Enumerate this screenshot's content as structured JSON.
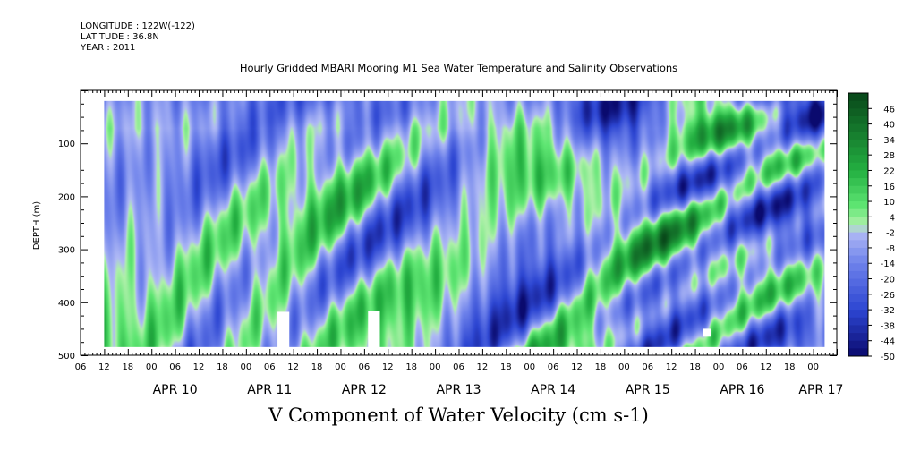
{
  "header": {
    "longitude": "LONGITUDE : 122W(-122)",
    "latitude": "LATITUDE : 36.8N",
    "year": "YEAR : 2011",
    "title": "Hourly Gridded MBARI Mooring M1 Sea Water Temperature and Salinity Observations"
  },
  "footer": {
    "variable_label": "V Component of Water Velocity (cm s-1)"
  },
  "chart_data": {
    "type": "heatmap",
    "title": "Hourly Gridded MBARI Mooring M1 Sea Water Temperature and Salinity Observations",
    "ylabel": "DEPTH (m)",
    "xlabel": "",
    "variable": "V Component of Water Velocity (cm s-1)",
    "ylim": [
      500,
      0
    ],
    "y_ticks": [
      100,
      200,
      300,
      400,
      500
    ],
    "depth_range": [
      20,
      485
    ],
    "x_range": [
      "2011-04-09T06:00",
      "2011-04-17T06:00"
    ],
    "data_range": [
      "2011-04-09T12:00",
      "2011-04-17T03:00"
    ],
    "x_hour_ticks": [
      "06",
      "12",
      "18",
      "00",
      "06",
      "12",
      "18",
      "00",
      "06",
      "12",
      "18",
      "00",
      "06",
      "12",
      "18",
      "00",
      "06",
      "12",
      "18",
      "00",
      "06",
      "12",
      "18",
      "00",
      "06",
      "12",
      "18",
      "00",
      "06",
      "12",
      "18",
      "00"
    ],
    "x_date_labels": [
      {
        "label": "APR 10",
        "hour": 24
      },
      {
        "label": "APR 11",
        "hour": 48
      },
      {
        "label": "APR 12",
        "hour": 72
      },
      {
        "label": "APR 13",
        "hour": 96
      },
      {
        "label": "APR 14",
        "hour": 120
      },
      {
        "label": "APR 15",
        "hour": 144
      },
      {
        "label": "APR 16",
        "hour": 168
      },
      {
        "label": "APR 17",
        "hour": 188
      }
    ],
    "colorbar": {
      "labels": [
        "46",
        "40",
        "34",
        "28",
        "22",
        "16",
        "10",
        "4",
        "-2",
        "-8",
        "-14",
        "-20",
        "-26",
        "-32",
        "-38",
        "-44",
        "-50"
      ],
      "min": -50,
      "max": 52,
      "step": 3
    },
    "missing_regions": [
      {
        "start_hour": 50,
        "end_hour": 53,
        "depth_min": 418,
        "depth_max": 485
      },
      {
        "start_hour": 73,
        "end_hour": 76,
        "depth_min": 416,
        "depth_max": 485
      },
      {
        "start_hour": 158,
        "end_hour": 160,
        "depth_min": 450,
        "depth_max": 465
      }
    ]
  }
}
